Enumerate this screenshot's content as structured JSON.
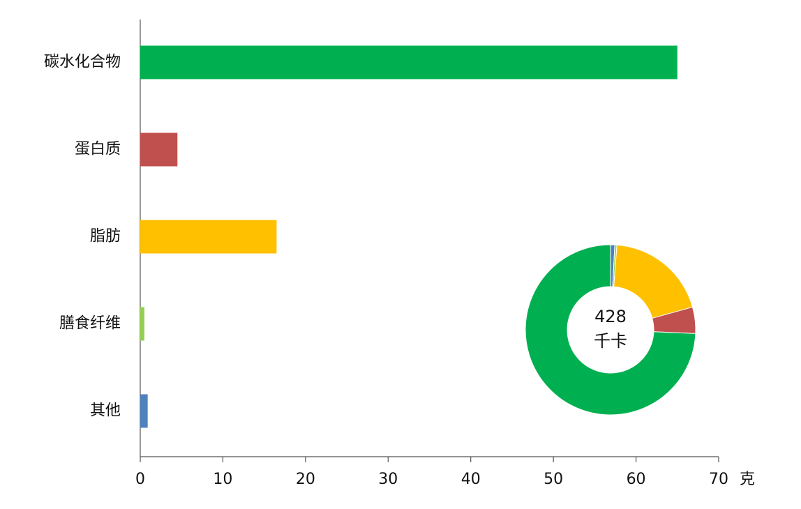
{
  "chart_data": [
    {
      "type": "bar",
      "orientation": "horizontal",
      "categories": [
        "碳水化合物",
        "蛋白质",
        "脂肪",
        "膳食纤维",
        "其他"
      ],
      "values": [
        65,
        4.5,
        16.5,
        0.5,
        0.9
      ],
      "colors": [
        "#00b050",
        "#c0504d",
        "#ffc000",
        "#92d050",
        "#4f81bd"
      ],
      "xlim": [
        0,
        70
      ],
      "xticks": [
        0,
        10,
        20,
        30,
        40,
        50,
        60,
        70
      ],
      "xlabel": "克"
    },
    {
      "type": "donut",
      "values": [
        0.8,
        0.4,
        19.5,
        5,
        74.3
      ],
      "colors": [
        "#4f81bd",
        "#92d050",
        "#ffc000",
        "#c0504d",
        "#00b050"
      ],
      "center_value": 428,
      "center_unit": "千卡"
    }
  ]
}
